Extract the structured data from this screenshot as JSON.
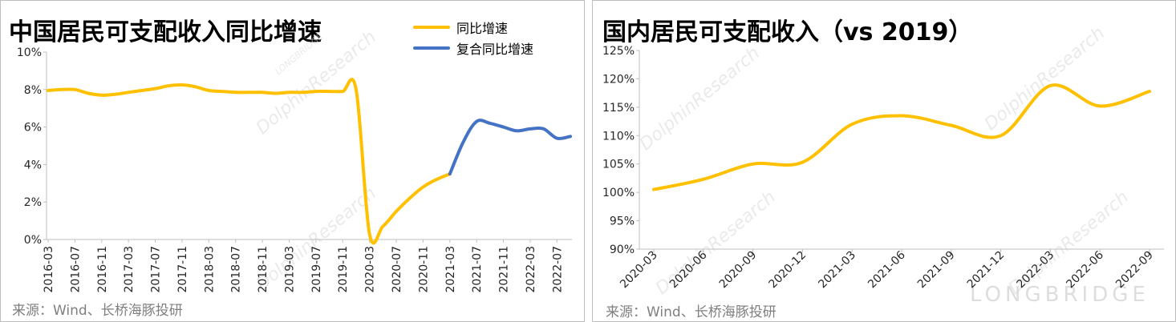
{
  "chart_data": [
    {
      "type": "line",
      "title": "中国居民可支配收入同比增速",
      "source": "来源：Wind、长桥海豚投研",
      "y_tick_labels": [
        "0%",
        "2%",
        "4%",
        "6%",
        "8%",
        "10%"
      ],
      "ylim": [
        0,
        10
      ],
      "x_tick_labels": [
        "2016-03",
        "2016-07",
        "2016-11",
        "2017-03",
        "2017-07",
        "2017-11",
        "2018-03",
        "2018-07",
        "2018-11",
        "2019-03",
        "2019-07",
        "2019-11",
        "2020-03",
        "2020-07",
        "2020-11",
        "2021-03",
        "2021-07",
        "2021-11",
        "2022-03",
        "2022-07"
      ],
      "x": [
        "2016-03",
        "2016-05",
        "2016-07",
        "2016-09",
        "2016-11",
        "2017-01",
        "2017-03",
        "2017-05",
        "2017-07",
        "2017-09",
        "2017-11",
        "2018-01",
        "2018-03",
        "2018-05",
        "2018-07",
        "2018-09",
        "2018-11",
        "2019-01",
        "2019-03",
        "2019-05",
        "2019-07",
        "2019-09",
        "2019-11",
        "2020-01",
        "2020-03",
        "2020-05",
        "2020-07",
        "2020-09",
        "2020-11",
        "2021-01",
        "2021-03",
        "2021-05",
        "2021-07",
        "2021-09",
        "2021-11",
        "2022-01",
        "2022-03",
        "2022-05",
        "2022-07",
        "2022-09"
      ],
      "series": [
        {
          "name": "同比增速",
          "color": "#ffc000",
          "values": [
            7.95,
            8.0,
            8.0,
            7.8,
            7.7,
            7.75,
            7.85,
            7.95,
            8.05,
            8.2,
            8.25,
            8.15,
            7.95,
            7.9,
            7.85,
            7.85,
            7.85,
            7.8,
            7.85,
            7.85,
            7.9,
            7.9,
            7.9,
            8.0,
            0.3,
            0.7,
            1.5,
            2.2,
            2.8,
            3.2,
            3.5,
            null,
            null,
            null,
            null,
            null,
            null,
            null,
            null,
            null
          ]
        },
        {
          "name": "复合同比增速",
          "color": "#4472c4",
          "values": [
            null,
            null,
            null,
            null,
            null,
            null,
            null,
            null,
            null,
            null,
            null,
            null,
            null,
            null,
            null,
            null,
            null,
            null,
            null,
            null,
            null,
            null,
            null,
            null,
            null,
            null,
            null,
            null,
            null,
            null,
            3.5,
            5.2,
            6.3,
            6.2,
            6.0,
            5.8,
            5.9,
            5.9,
            5.4,
            5.5
          ]
        }
      ]
    },
    {
      "type": "line",
      "title": "国内居民可支配收入（vs 2019）",
      "source": "来源：Wind、长桥海豚投研",
      "y_tick_labels": [
        "90%",
        "95%",
        "100%",
        "105%",
        "110%",
        "115%",
        "120%",
        "125%"
      ],
      "ylim": [
        90,
        125
      ],
      "x_tick_labels": [
        "2020-03",
        "2020-06",
        "2020-09",
        "2020-12",
        "2021-03",
        "2021-06",
        "2021-09",
        "2021-12",
        "2022-03",
        "2022-06",
        "2022-09"
      ],
      "x": [
        "2020-03",
        "2020-06",
        "2020-09",
        "2020-12",
        "2021-03",
        "2021-06",
        "2021-09",
        "2021-12",
        "2022-03",
        "2022-06",
        "2022-09"
      ],
      "series": [
        {
          "color": "#ffc000",
          "values": [
            100.5,
            102.3,
            105.0,
            105.3,
            112.0,
            113.5,
            111.8,
            110.0,
            118.8,
            115.2,
            117.8
          ]
        }
      ]
    }
  ],
  "watermark": {
    "en": "DolphinResearch",
    "sub": "LONGBRIDGE",
    "brand": "LONGBRIDGE"
  }
}
